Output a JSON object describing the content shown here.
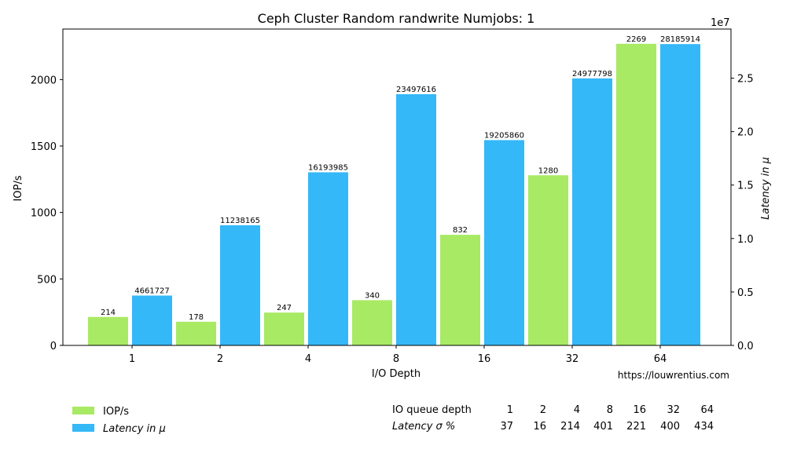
{
  "chart_data": {
    "type": "bar",
    "title": "Ceph Cluster Random randwrite Numjobs: 1",
    "xlabel": "I/O Depth",
    "ylabel": "IOP/s",
    "y2label": "Latency in μ",
    "y2_exponent": "1e7",
    "categories": [
      "1",
      "2",
      "4",
      "8",
      "16",
      "32",
      "64"
    ],
    "ylim": [
      0,
      2380
    ],
    "yticks": [
      "0",
      "500",
      "1000",
      "1500",
      "2000"
    ],
    "y2lim": [
      0,
      29594000
    ],
    "y2ticks": [
      "0.0",
      "0.5",
      "1.0",
      "1.5",
      "2.0",
      "2.5"
    ],
    "series": [
      {
        "name": "IOP/s",
        "axis": "left",
        "color": "#a8ea64",
        "values": [
          214,
          178,
          247,
          340,
          832,
          1280,
          2269
        ]
      },
      {
        "name": "Latency in μ",
        "axis": "right",
        "color": "#34b8f8",
        "values": [
          4661727,
          11238165,
          16193985,
          23497616,
          19205860,
          24977798,
          28185914
        ]
      }
    ],
    "legend_position": "bottom-left",
    "grid": false
  },
  "source_link": "https://louwrentius.com",
  "stats_table": {
    "header_label": "IO queue depth",
    "row_label": "Latency σ %",
    "depths": [
      "1",
      "2",
      "4",
      "8",
      "16",
      "32",
      "64"
    ],
    "sigma": [
      "37",
      "16",
      "214",
      "401",
      "221",
      "400",
      "434"
    ]
  }
}
